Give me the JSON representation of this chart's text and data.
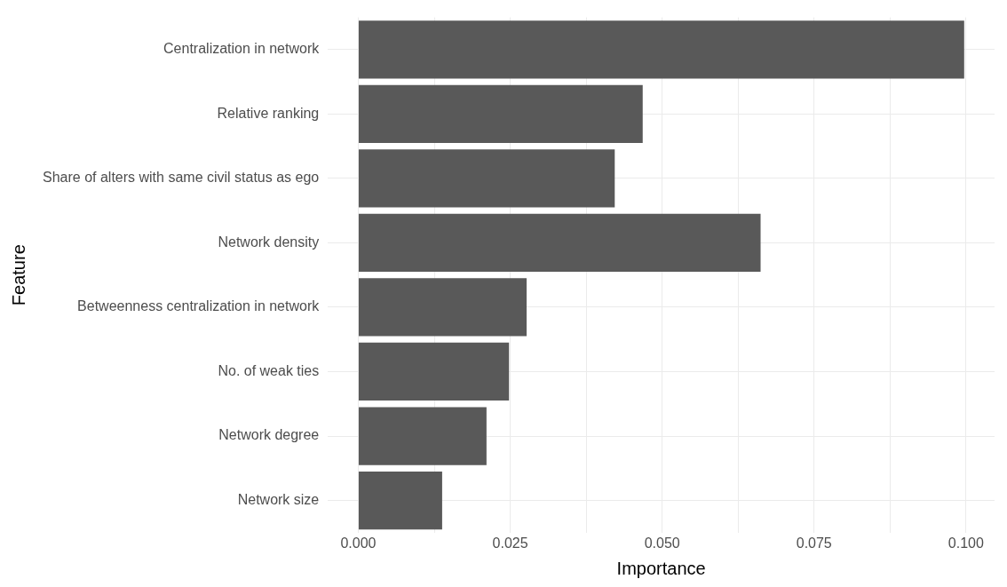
{
  "chart_data": {
    "type": "bar",
    "orientation": "horizontal",
    "xlabel": "Importance",
    "ylabel": "Feature",
    "categories": [
      "Centralization in network",
      "Relative ranking",
      "Share of alters with same civil status as ego",
      "Network density",
      "Betweenness centralization in network",
      "No. of weak ties",
      "Network degree",
      "Network size"
    ],
    "values": [
      0.0997,
      0.0468,
      0.0422,
      0.0662,
      0.0277,
      0.0248,
      0.0211,
      0.0138
    ],
    "color": "#595959",
    "xlim": [
      -0.005,
      0.1047
    ],
    "xticks": [
      {
        "value": 0,
        "label": "0.000"
      },
      {
        "value": 0.0125,
        "label": null
      },
      {
        "value": 0.025,
        "label": "0.025"
      },
      {
        "value": 0.0375,
        "label": null
      },
      {
        "value": 0.05,
        "label": "0.050"
      },
      {
        "value": 0.0625,
        "label": null
      },
      {
        "value": 0.075,
        "label": "0.075"
      },
      {
        "value": 0.0875,
        "label": null
      },
      {
        "value": 0.1,
        "label": "0.100"
      }
    ],
    "grid": true,
    "legend": false
  }
}
